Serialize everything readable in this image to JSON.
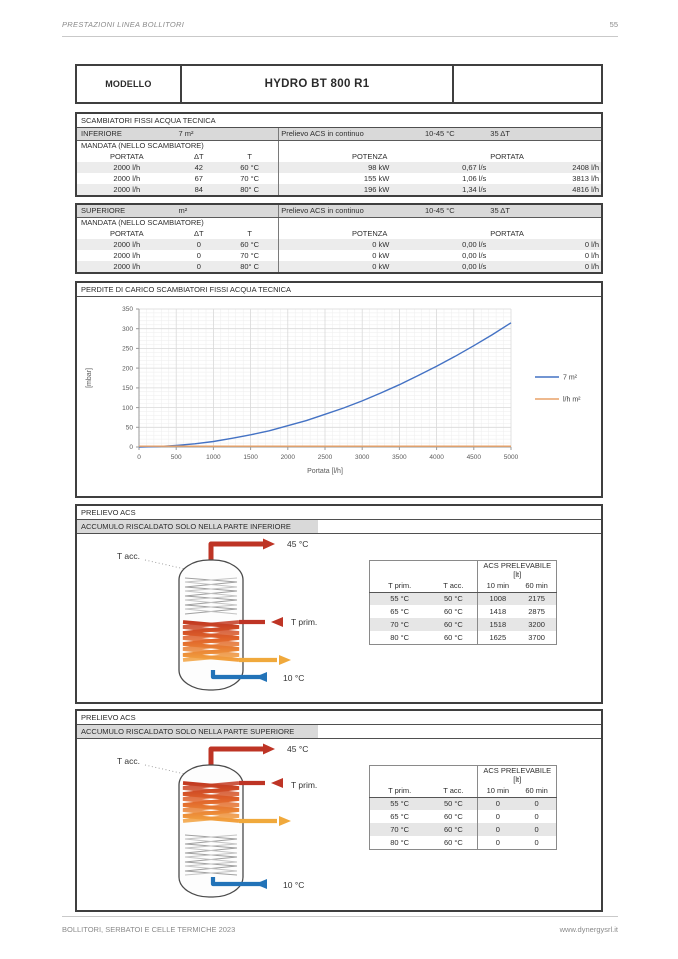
{
  "page_header": {
    "title": "PRESTAZIONI LINEA BOLLITORI",
    "page_number": "55"
  },
  "model_table": {
    "label": "MODELLO",
    "value": "HYDRO BT 800 R1"
  },
  "exchangers": {
    "title": "SCAMBIATORI FISSI ACQUA TECNICA",
    "mandata_label": "MANDATA (NELLO SCAMBIATORE)",
    "columns": {
      "portata": "PORTATA",
      "dt": "ΔT",
      "t": "T",
      "potenza": "POTENZA",
      "portata2": "PORTATA"
    },
    "sections": [
      {
        "name": "INFERIORE",
        "surface": "7 m²",
        "prelievo": "Prelievo ACS in continuo",
        "temp_range": "10-45 °C",
        "delta_t": "35 ΔT",
        "rows": [
          {
            "portata": "2000 l/h",
            "dt": "42",
            "t": "60 °C",
            "kw": "98 kW",
            "ls": "0,67 l/s",
            "lh": "2408 l/h"
          },
          {
            "portata": "2000 l/h",
            "dt": "67",
            "t": "70 °C",
            "kw": "155 kW",
            "ls": "1,06 l/s",
            "lh": "3813 l/h"
          },
          {
            "portata": "2000 l/h",
            "dt": "84",
            "t": "80° C",
            "kw": "196 kW",
            "ls": "1,34 l/s",
            "lh": "4816 l/h"
          }
        ]
      },
      {
        "name": "SUPERIORE",
        "surface": "m²",
        "prelievo": "Prelievo ACS in continuo",
        "temp_range": "10-45 °C",
        "delta_t": "35 ΔT",
        "rows": [
          {
            "portata": "2000 l/h",
            "dt": "0",
            "t": "60 °C",
            "kw": "0 kW",
            "ls": "0,00 l/s",
            "lh": "0 l/h"
          },
          {
            "portata": "2000 l/h",
            "dt": "0",
            "t": "70 °C",
            "kw": "0 kW",
            "ls": "0,00 l/s",
            "lh": "0 l/h"
          },
          {
            "portata": "2000 l/h",
            "dt": "0",
            "t": "80° C",
            "kw": "0 kW",
            "ls": "0,00 l/s",
            "lh": "0 l/h"
          }
        ]
      }
    ]
  },
  "chart_section": {
    "title": "PERDITE DI CARICO SCAMBIATORI FISSI ACQUA TECNICA"
  },
  "chart_data": {
    "type": "line",
    "title": "PERDITE DI CARICO SCAMBIATORI FISSI ACQUA TECNICA",
    "xlabel": "Portata [l/h]",
    "ylabel": "[mbar]",
    "xlim": [
      0,
      5000
    ],
    "ylim": [
      0,
      350
    ],
    "xtick_step": 500,
    "ytick_step": 50,
    "xtick_minor": 100,
    "ytick_minor": 10,
    "grid": true,
    "legend_position": "right",
    "x": [
      0,
      250,
      500,
      750,
      1000,
      1250,
      1500,
      1750,
      2000,
      2250,
      2500,
      2750,
      3000,
      3250,
      3500,
      3750,
      4000,
      4250,
      4500,
      4750,
      5000
    ],
    "series": [
      {
        "name": "7 m²",
        "color": "#4472C4",
        "values": [
          0,
          1,
          4,
          8,
          14,
          22,
          31,
          41,
          54,
          67,
          83,
          99,
          117,
          137,
          158,
          181,
          205,
          230,
          257,
          285,
          315
        ]
      },
      {
        "name": "l/h m²",
        "color": "#E8A268",
        "values": [
          2,
          2,
          2,
          2,
          2,
          2,
          2,
          2,
          2,
          2,
          2,
          2,
          2,
          2,
          2,
          2,
          2,
          2,
          2,
          2,
          2
        ]
      }
    ]
  },
  "prelievo": [
    {
      "section_title": "PRELIEVO ACS",
      "subtitle": "ACCUMULO RISCALDATO SOLO NELLA PARTE INFERIORE",
      "labels": {
        "t_acc": "T acc.",
        "top_out": "45 °C",
        "t_prim": "T prim.",
        "bottom_in": "10 °C"
      },
      "table": {
        "span_header": "ACS PRELEVABILE [lt]",
        "columns": [
          "T prim.",
          "T acc.",
          "10 min",
          "60 min"
        ],
        "rows": [
          [
            "55 °C",
            "50 °C",
            "1008",
            "2175"
          ],
          [
            "65 °C",
            "60 °C",
            "1418",
            "2875"
          ],
          [
            "70 °C",
            "60 °C",
            "1518",
            "3200"
          ],
          [
            "80 °C",
            "60 °C",
            "1625",
            "3700"
          ]
        ]
      }
    },
    {
      "section_title": "PRELIEVO ACS",
      "subtitle": "ACCUMULO RISCALDATO SOLO NELLA PARTE SUPERIORE",
      "labels": {
        "t_acc": "T acc.",
        "top_out": "45 °C",
        "t_prim": "T prim.",
        "bottom_in": "10 °C"
      },
      "table": {
        "span_header": "ACS PRELEVABILE [lt]",
        "columns": [
          "T prim.",
          "T acc.",
          "10 min",
          "60 min"
        ],
        "rows": [
          [
            "55 °C",
            "50 °C",
            "0",
            "0"
          ],
          [
            "65 °C",
            "60 °C",
            "0",
            "0"
          ],
          [
            "70 °C",
            "60 °C",
            "0",
            "0"
          ],
          [
            "80 °C",
            "60 °C",
            "0",
            "0"
          ]
        ]
      }
    }
  ],
  "page_footer": {
    "left": "BOLLITORI, SERBATOI E CELLE TERMICHE 2023",
    "right": "www.dynergysrl.it"
  },
  "colors": {
    "accent_red": "#BE3425",
    "accent_orange": "#F0A93C",
    "accent_blue": "#2273B8",
    "series_blue": "#4472C4",
    "series_orange": "#E8A268",
    "table_gray": "#D9D9D9"
  }
}
